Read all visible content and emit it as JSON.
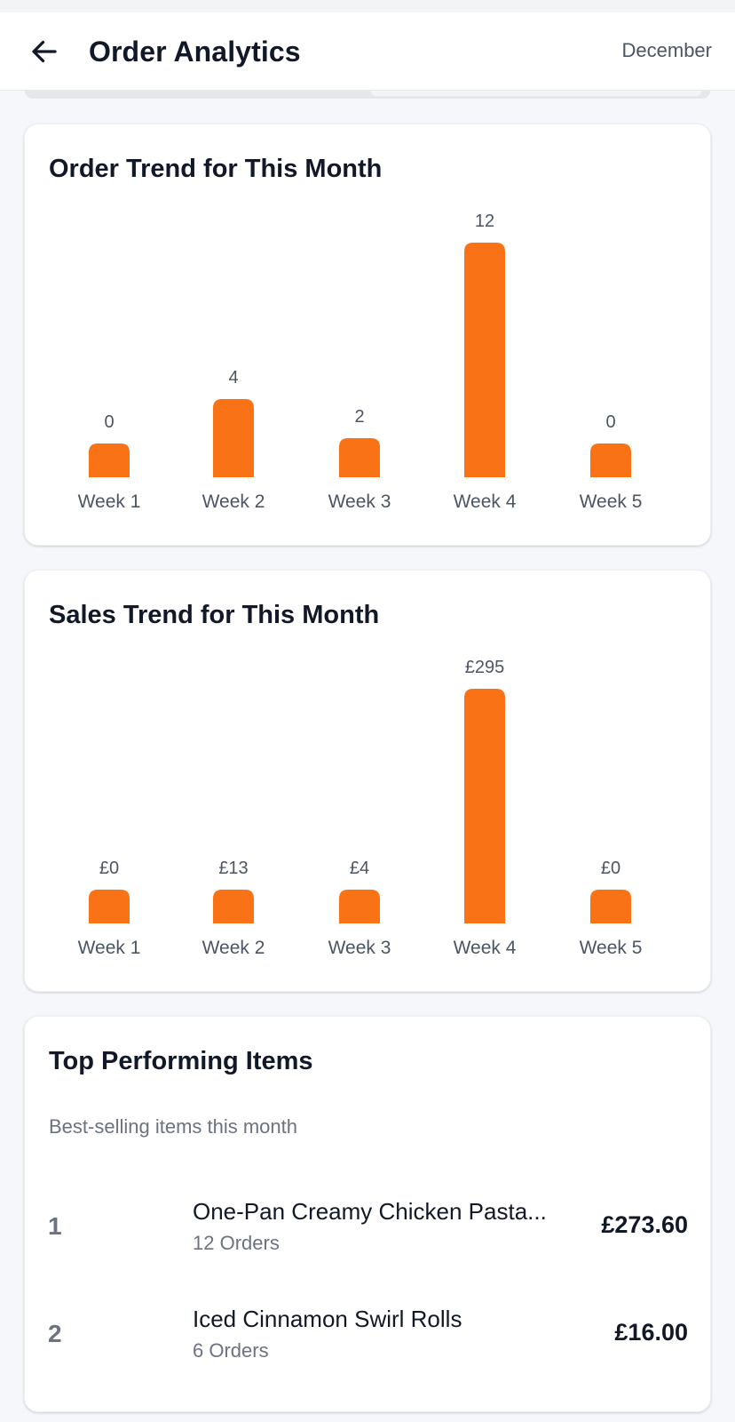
{
  "header": {
    "title": "Order Analytics",
    "month": "December",
    "back_icon": "arrow-left-icon"
  },
  "colors": {
    "bar": "#f97316",
    "text_primary": "#111827",
    "text_secondary": "#6b7280"
  },
  "order_card": {
    "title": "Order Trend for This Month"
  },
  "sales_card": {
    "title": "Sales Trend for This Month"
  },
  "chart_data": [
    {
      "type": "bar",
      "title": "Order Trend for This Month",
      "categories": [
        "Week 1",
        "Week 2",
        "Week 3",
        "Week 4",
        "Week 5"
      ],
      "values": [
        0,
        4,
        2,
        12,
        0
      ],
      "labels": [
        "0",
        "4",
        "2",
        "12",
        "0"
      ],
      "grid": false,
      "color": "#f97316"
    },
    {
      "type": "bar",
      "title": "Sales Trend for This Month",
      "categories": [
        "Week 1",
        "Week 2",
        "Week 3",
        "Week 4",
        "Week 5"
      ],
      "values": [
        0,
        13,
        4,
        295,
        0
      ],
      "labels": [
        "£0",
        "£13",
        "£4",
        "£295",
        "£0"
      ],
      "grid": false,
      "color": "#f97316"
    }
  ],
  "top_items": {
    "title": "Top Performing Items",
    "subtitle": "Best-selling items this month",
    "items": [
      {
        "rank": "1",
        "name": "One-Pan Creamy Chicken Pasta...",
        "orders": "12 Orders",
        "amount": "£273.60"
      },
      {
        "rank": "2",
        "name": "Iced Cinnamon Swirl Rolls",
        "orders": "6 Orders",
        "amount": "£16.00"
      }
    ]
  }
}
